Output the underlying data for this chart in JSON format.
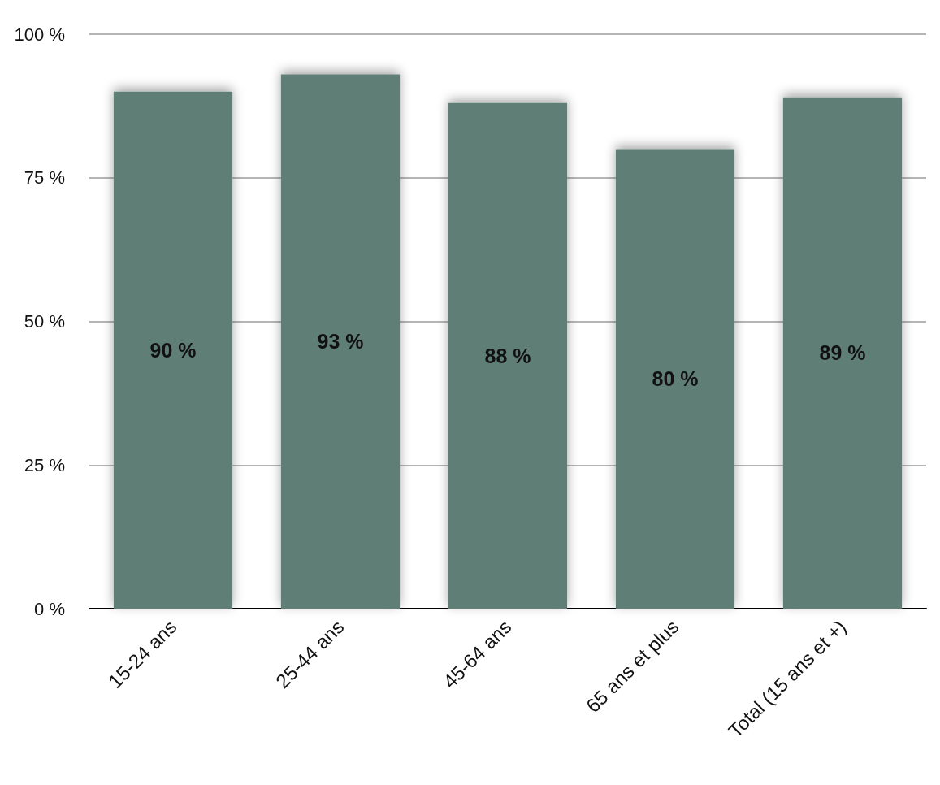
{
  "chart_data": {
    "type": "bar",
    "categories": [
      "15-24 ans",
      "25-44 ans",
      "45-64 ans",
      "65 ans et plus",
      "Total (15 ans et +)"
    ],
    "values": [
      90,
      93,
      88,
      80,
      89
    ],
    "value_labels": [
      "90 %",
      "93 %",
      "88 %",
      "80 %",
      "89 %"
    ],
    "color": "#5f7f76",
    "ylim": [
      0,
      100
    ],
    "yticks": [
      {
        "value": 0,
        "label": "0 %"
      },
      {
        "value": 25,
        "label": "25 %"
      },
      {
        "value": 50,
        "label": "50 %"
      },
      {
        "value": 75,
        "label": "75 %"
      },
      {
        "value": 100,
        "label": "100 %"
      }
    ],
    "grid": "y"
  }
}
